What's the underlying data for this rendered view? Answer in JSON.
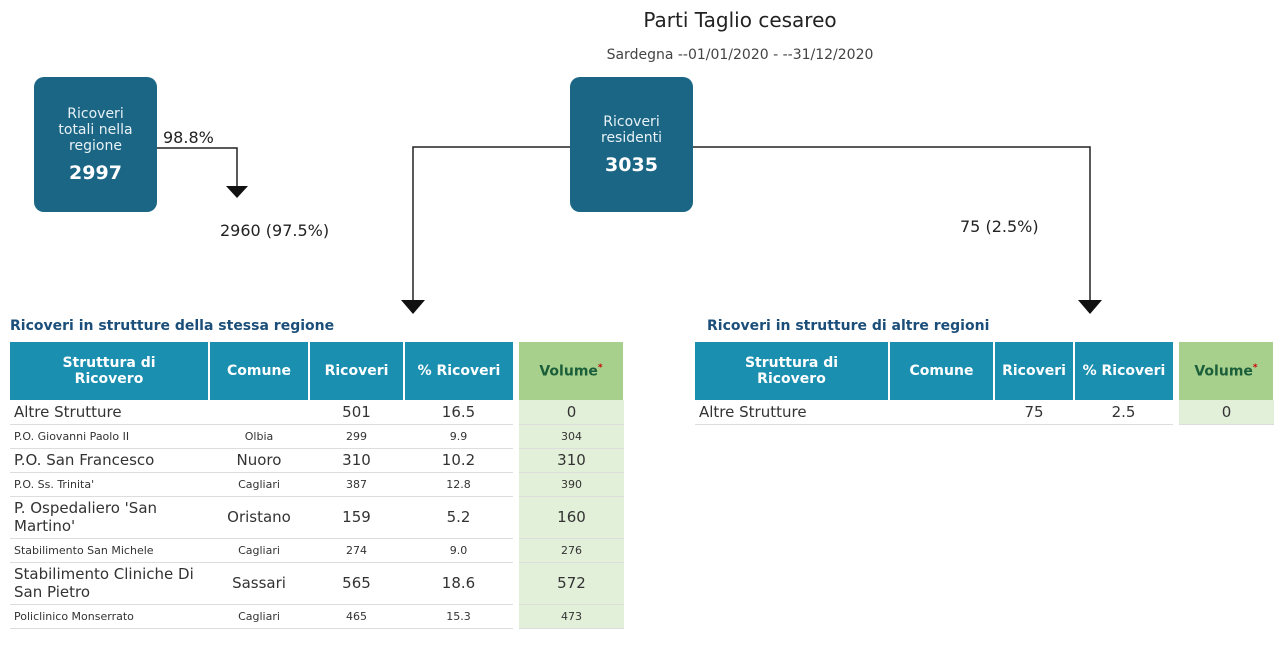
{
  "header": {
    "title": "Parti Taglio cesareo",
    "subtitle": "Sardegna --01/01/2020 - --31/12/2020"
  },
  "nodes": [
    {
      "label": "Ricoveri totali nella regione",
      "value": "2997"
    },
    {
      "label": "Ricoveri residenti",
      "value": "3035"
    }
  ],
  "edges": [
    {
      "label": "98.8%"
    },
    {
      "label": "2960 (97.5%)"
    },
    {
      "label": "75 (2.5%)"
    }
  ],
  "tables": [
    {
      "title": "Ricoveri in strutture della stessa regione",
      "columns": [
        "Struttura di Ricovero",
        "Comune",
        "Ricoveri",
        "% Ricoveri",
        {
          "text": "Volume",
          "mark": "*"
        }
      ],
      "rows": [
        [
          "Altre Strutture",
          null,
          "501",
          "16.5",
          "0"
        ],
        [
          "P.O. Giovanni Paolo II",
          "Olbia",
          "299",
          "9.9",
          "304"
        ],
        [
          "P.O. San Francesco",
          "Nuoro",
          "310",
          "10.2",
          "310"
        ],
        [
          "P.O. Ss. Trinita'",
          "Cagliari",
          "387",
          "12.8",
          "390"
        ],
        [
          "P. Ospedaliero 'San Martino'",
          "Oristano",
          "159",
          "5.2",
          "160"
        ],
        [
          "Stabilimento San Michele",
          "Cagliari",
          "274",
          "9.0",
          "276"
        ],
        [
          "Stabilimento Cliniche Di San Pietro",
          "Sassari",
          "565",
          "18.6",
          "572"
        ],
        [
          "Policlinico Monserrato",
          "Cagliari",
          "465",
          "15.3",
          "473"
        ]
      ]
    },
    {
      "title": "Ricoveri in strutture di altre regioni",
      "columns": [
        "Struttura di Ricovero",
        "Comune",
        "Ricoveri",
        "% Ricoveri",
        {
          "text": "Volume",
          "mark": "*"
        }
      ],
      "rows": [
        [
          "Altre Strutture",
          null,
          "75",
          "2.5",
          "0"
        ]
      ]
    }
  ]
}
